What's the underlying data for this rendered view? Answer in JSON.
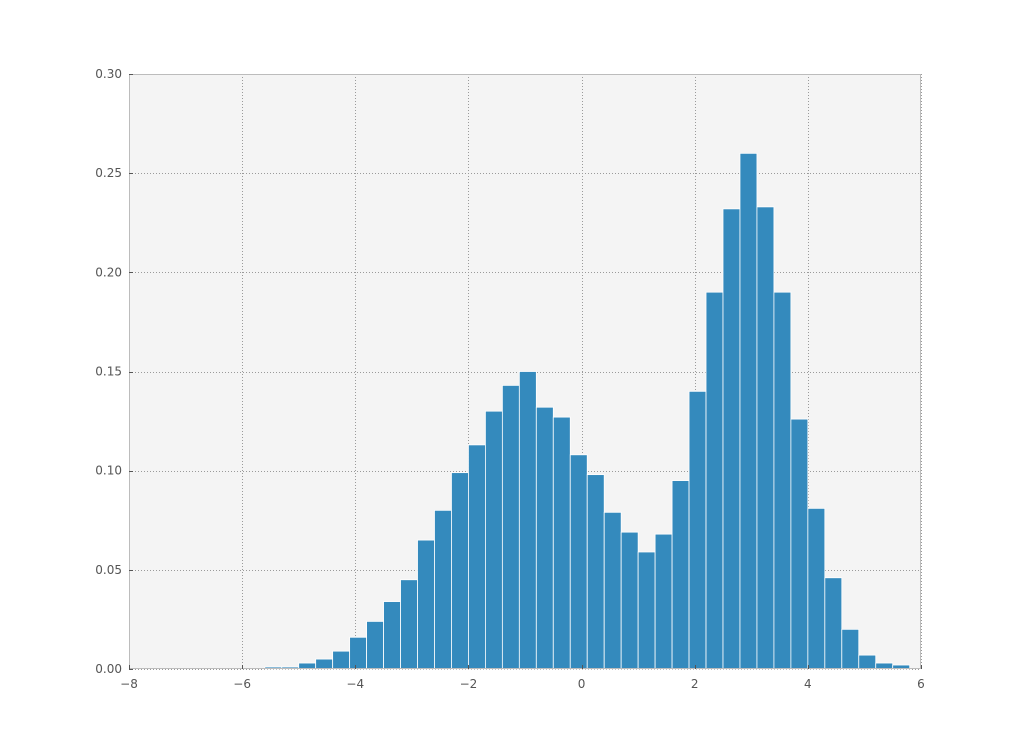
{
  "chart_data": {
    "type": "bar",
    "subtype": "histogram",
    "xlim": [
      -8,
      6
    ],
    "ylim": [
      0,
      0.3
    ],
    "bin_width": 0.3,
    "grid": true,
    "xticks": [
      "−8",
      "−6",
      "−4",
      "−2",
      "0",
      "2",
      "4",
      "6"
    ],
    "yticks": [
      "0.00",
      "0.05",
      "0.10",
      "0.15",
      "0.20",
      "0.25",
      "0.30"
    ],
    "xtick_values": [
      -8,
      -6,
      -4,
      -2,
      0,
      2,
      4,
      6
    ],
    "ytick_values": [
      0,
      0.05,
      0.1,
      0.15,
      0.2,
      0.25,
      0.3
    ],
    "colors": {
      "bar": "#348ABD",
      "bar_edge": "#ffffff",
      "plot_background": "#f4f4f4",
      "frame": "#bcbcbc",
      "grid": "#9a9a9a",
      "tick_label": "#555555"
    },
    "bins": [
      {
        "x0": -6.5,
        "x1": -6.2,
        "value": 0.0
      },
      {
        "x0": -6.2,
        "x1": -5.9,
        "value": 0.0
      },
      {
        "x0": -5.9,
        "x1": -5.6,
        "value": 0.0
      },
      {
        "x0": -5.6,
        "x1": -5.3,
        "value": 0.001
      },
      {
        "x0": -5.3,
        "x1": -5.0,
        "value": 0.001
      },
      {
        "x0": -5.0,
        "x1": -4.7,
        "value": 0.003
      },
      {
        "x0": -4.7,
        "x1": -4.4,
        "value": 0.005
      },
      {
        "x0": -4.4,
        "x1": -4.1,
        "value": 0.009
      },
      {
        "x0": -4.1,
        "x1": -3.8,
        "value": 0.016
      },
      {
        "x0": -3.8,
        "x1": -3.5,
        "value": 0.024
      },
      {
        "x0": -3.5,
        "x1": -3.2,
        "value": 0.034
      },
      {
        "x0": -3.2,
        "x1": -2.9,
        "value": 0.045
      },
      {
        "x0": -2.9,
        "x1": -2.6,
        "value": 0.065
      },
      {
        "x0": -2.6,
        "x1": -2.3,
        "value": 0.08
      },
      {
        "x0": -2.3,
        "x1": -2.0,
        "value": 0.099
      },
      {
        "x0": -2.0,
        "x1": -1.7,
        "value": 0.113
      },
      {
        "x0": -1.7,
        "x1": -1.4,
        "value": 0.13
      },
      {
        "x0": -1.4,
        "x1": -1.1,
        "value": 0.143
      },
      {
        "x0": -1.1,
        "x1": -0.8,
        "value": 0.15
      },
      {
        "x0": -0.8,
        "x1": -0.5,
        "value": 0.132
      },
      {
        "x0": -0.5,
        "x1": -0.2,
        "value": 0.127
      },
      {
        "x0": -0.2,
        "x1": 0.1,
        "value": 0.108
      },
      {
        "x0": 0.1,
        "x1": 0.4,
        "value": 0.098
      },
      {
        "x0": 0.4,
        "x1": 0.7,
        "value": 0.079
      },
      {
        "x0": 0.7,
        "x1": 1.0,
        "value": 0.069
      },
      {
        "x0": 1.0,
        "x1": 1.3,
        "value": 0.059
      },
      {
        "x0": 1.3,
        "x1": 1.6,
        "value": 0.068
      },
      {
        "x0": 1.6,
        "x1": 1.9,
        "value": 0.095
      },
      {
        "x0": 1.9,
        "x1": 2.2,
        "value": 0.14
      },
      {
        "x0": 2.2,
        "x1": 2.5,
        "value": 0.19
      },
      {
        "x0": 2.5,
        "x1": 2.8,
        "value": 0.232
      },
      {
        "x0": 2.8,
        "x1": 3.1,
        "value": 0.26
      },
      {
        "x0": 3.1,
        "x1": 3.4,
        "value": 0.233
      },
      {
        "x0": 3.4,
        "x1": 3.7,
        "value": 0.19
      },
      {
        "x0": 3.7,
        "x1": 4.0,
        "value": 0.126
      },
      {
        "x0": 4.0,
        "x1": 4.3,
        "value": 0.081
      },
      {
        "x0": 4.3,
        "x1": 4.6,
        "value": 0.046
      },
      {
        "x0": 4.6,
        "x1": 4.9,
        "value": 0.02
      },
      {
        "x0": 4.9,
        "x1": 5.2,
        "value": 0.007
      },
      {
        "x0": 5.2,
        "x1": 5.5,
        "value": 0.003
      },
      {
        "x0": 5.5,
        "x1": 5.8,
        "value": 0.002
      }
    ]
  }
}
